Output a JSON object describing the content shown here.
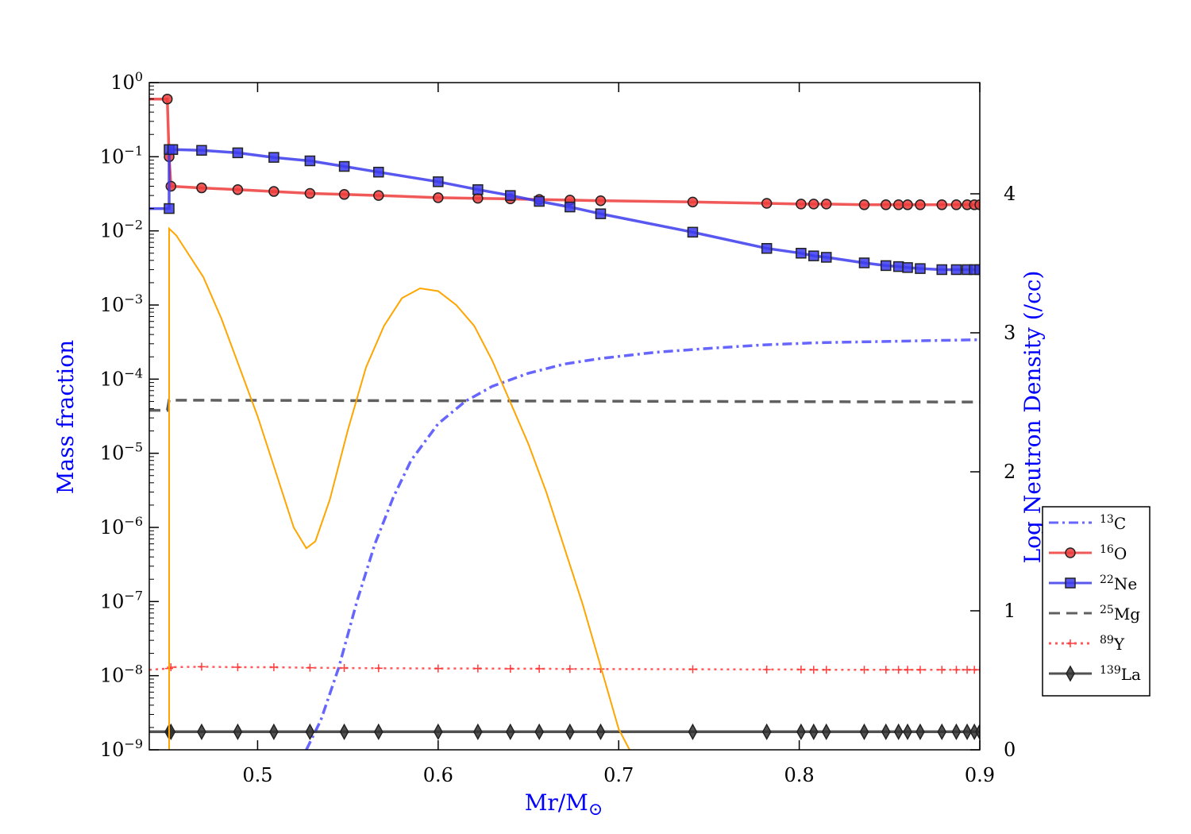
{
  "chart_data": {
    "type": "line",
    "xlabel": "Mr/M",
    "xlabel_symbol": "⊙",
    "ylabel": "Mass fraction",
    "y2label": "Log Neutron Density (/cc)",
    "xlim": [
      0.44,
      0.9
    ],
    "ylim": [
      1e-09,
      1.0
    ],
    "yscale": "log",
    "y2lim": [
      0,
      4.8
    ],
    "x_ticks": [
      "0.5",
      "0.6",
      "0.7",
      "0.8",
      "0.9"
    ],
    "y_ticks": [
      {
        "base": "10",
        "exp": "0"
      },
      {
        "base": "10",
        "exp": "−1"
      },
      {
        "base": "10",
        "exp": "−2"
      },
      {
        "base": "10",
        "exp": "−3"
      },
      {
        "base": "10",
        "exp": "−4"
      },
      {
        "base": "10",
        "exp": "−5"
      },
      {
        "base": "10",
        "exp": "−6"
      },
      {
        "base": "10",
        "exp": "−7"
      },
      {
        "base": "10",
        "exp": "−8"
      },
      {
        "base": "10",
        "exp": "−9"
      }
    ],
    "y2_ticks": [
      "0",
      "1",
      "2",
      "3",
      "4"
    ],
    "legend_position": "right, outside plot",
    "colors": {
      "c13": "#4b4bff",
      "o16": "#ef3b3b",
      "ne22": "#3b3bef",
      "mg25": "#444444",
      "y89": "#ff3b3b",
      "la139": "#333333",
      "neutron": "#ffa500",
      "axis_title": "#0000ff"
    },
    "series": [
      {
        "name": "C",
        "mass": "13",
        "key": "c13",
        "style": "dashdot",
        "marker": "none",
        "x": [
          0.527,
          0.535,
          0.545,
          0.555,
          0.565,
          0.575,
          0.585,
          0.6,
          0.615,
          0.63,
          0.65,
          0.67,
          0.69,
          0.72,
          0.75,
          0.78,
          0.81,
          0.84,
          0.87,
          0.9
        ],
        "y": [
          1e-09,
          2.5e-09,
          1.3e-08,
          1e-07,
          6e-07,
          2.5e-06,
          8e-06,
          2.5e-05,
          5e-05,
          8e-05,
          0.00012,
          0.00016,
          0.00019,
          0.00023,
          0.00026,
          0.00029,
          0.00031,
          0.00032,
          0.00033,
          0.00034
        ]
      },
      {
        "name": "O",
        "mass": "16",
        "key": "o16",
        "style": "solid",
        "marker": "circle",
        "x": [
          0.44,
          0.45,
          0.451,
          0.452,
          0.469,
          0.489,
          0.509,
          0.529,
          0.548,
          0.567,
          0.6,
          0.622,
          0.64,
          0.656,
          0.673,
          0.69,
          0.741,
          0.782,
          0.801,
          0.808,
          0.815,
          0.836,
          0.848,
          0.855,
          0.86,
          0.867,
          0.879,
          0.887,
          0.893,
          0.897,
          0.9
        ],
        "y": [
          0.6,
          0.6,
          0.1,
          0.04,
          0.038,
          0.036,
          0.034,
          0.032,
          0.031,
          0.03,
          0.028,
          0.0275,
          0.027,
          0.0265,
          0.026,
          0.0255,
          0.0245,
          0.0235,
          0.023,
          0.023,
          0.023,
          0.0225,
          0.0225,
          0.0225,
          0.0225,
          0.0225,
          0.0225,
          0.0225,
          0.0225,
          0.0225,
          0.0225
        ]
      },
      {
        "name": "Ne",
        "mass": "22",
        "key": "ne22",
        "style": "solid",
        "marker": "square",
        "x": [
          0.44,
          0.451,
          0.451,
          0.453,
          0.469,
          0.489,
          0.509,
          0.529,
          0.548,
          0.567,
          0.6,
          0.622,
          0.64,
          0.656,
          0.673,
          0.69,
          0.741,
          0.782,
          0.801,
          0.808,
          0.815,
          0.836,
          0.848,
          0.855,
          0.86,
          0.867,
          0.879,
          0.887,
          0.893,
          0.897,
          0.9
        ],
        "y": [
          0.02,
          0.02,
          0.125,
          0.125,
          0.122,
          0.113,
          0.098,
          0.088,
          0.074,
          0.062,
          0.046,
          0.036,
          0.03,
          0.025,
          0.021,
          0.017,
          0.0096,
          0.0058,
          0.005,
          0.0046,
          0.0044,
          0.0037,
          0.0034,
          0.0033,
          0.0032,
          0.0031,
          0.003,
          0.003,
          0.003,
          0.003,
          0.003
        ]
      },
      {
        "name": "Mg",
        "mass": "25",
        "key": "mg25",
        "style": "dashed",
        "marker": "none",
        "x": [
          0.44,
          0.45,
          0.451,
          0.9
        ],
        "y": [
          3.8e-05,
          3.8e-05,
          5.2e-05,
          4.9e-05
        ]
      },
      {
        "name": "Y",
        "mass": "89",
        "key": "y89",
        "style": "dotted",
        "marker": "plus",
        "x": [
          0.44,
          0.451,
          0.452,
          0.469,
          0.489,
          0.509,
          0.529,
          0.548,
          0.567,
          0.6,
          0.622,
          0.64,
          0.656,
          0.673,
          0.69,
          0.741,
          0.782,
          0.801,
          0.808,
          0.815,
          0.836,
          0.848,
          0.855,
          0.86,
          0.867,
          0.879,
          0.887,
          0.893,
          0.897,
          0.9
        ],
        "y": [
          1.2e-08,
          1.25e-08,
          1.3e-08,
          1.32e-08,
          1.3e-08,
          1.3e-08,
          1.28e-08,
          1.27e-08,
          1.26e-08,
          1.25e-08,
          1.25e-08,
          1.24e-08,
          1.24e-08,
          1.23e-08,
          1.23e-08,
          1.22e-08,
          1.21e-08,
          1.21e-08,
          1.2e-08,
          1.2e-08,
          1.2e-08,
          1.2e-08,
          1.2e-08,
          1.2e-08,
          1.2e-08,
          1.2e-08,
          1.2e-08,
          1.2e-08,
          1.2e-08,
          1.2e-08
        ]
      },
      {
        "name": "La",
        "mass": "139",
        "key": "la139",
        "style": "solid",
        "marker": "diamond",
        "x": [
          0.44,
          0.451,
          0.452,
          0.469,
          0.489,
          0.509,
          0.529,
          0.548,
          0.567,
          0.6,
          0.622,
          0.64,
          0.656,
          0.673,
          0.69,
          0.741,
          0.782,
          0.801,
          0.808,
          0.815,
          0.836,
          0.848,
          0.855,
          0.86,
          0.867,
          0.879,
          0.887,
          0.893,
          0.897,
          0.9
        ],
        "y": [
          1.75e-09,
          1.75e-09,
          1.75e-09,
          1.75e-09,
          1.75e-09,
          1.75e-09,
          1.75e-09,
          1.75e-09,
          1.75e-09,
          1.75e-09,
          1.75e-09,
          1.75e-09,
          1.75e-09,
          1.75e-09,
          1.75e-09,
          1.75e-09,
          1.75e-09,
          1.75e-09,
          1.75e-09,
          1.75e-09,
          1.75e-09,
          1.75e-09,
          1.75e-09,
          1.75e-09,
          1.75e-09,
          1.75e-09,
          1.75e-09,
          1.75e-09,
          1.75e-09,
          1.75e-09
        ]
      }
    ],
    "neutron_density": {
      "key": "neutron",
      "axis": "right",
      "x": [
        0.451,
        0.451,
        0.455,
        0.46,
        0.47,
        0.48,
        0.49,
        0.5,
        0.51,
        0.52,
        0.527,
        0.532,
        0.54,
        0.55,
        0.56,
        0.57,
        0.58,
        0.59,
        0.6,
        0.61,
        0.62,
        0.63,
        0.64,
        0.65,
        0.66,
        0.67,
        0.68,
        0.69,
        0.7,
        0.706
      ],
      "y": [
        0.0,
        3.75,
        3.7,
        3.6,
        3.4,
        3.1,
        2.75,
        2.4,
        2.0,
        1.6,
        1.45,
        1.5,
        1.8,
        2.3,
        2.75,
        3.05,
        3.25,
        3.32,
        3.3,
        3.2,
        3.05,
        2.8,
        2.5,
        2.2,
        1.85,
        1.45,
        1.05,
        0.6,
        0.15,
        0.0
      ]
    }
  }
}
